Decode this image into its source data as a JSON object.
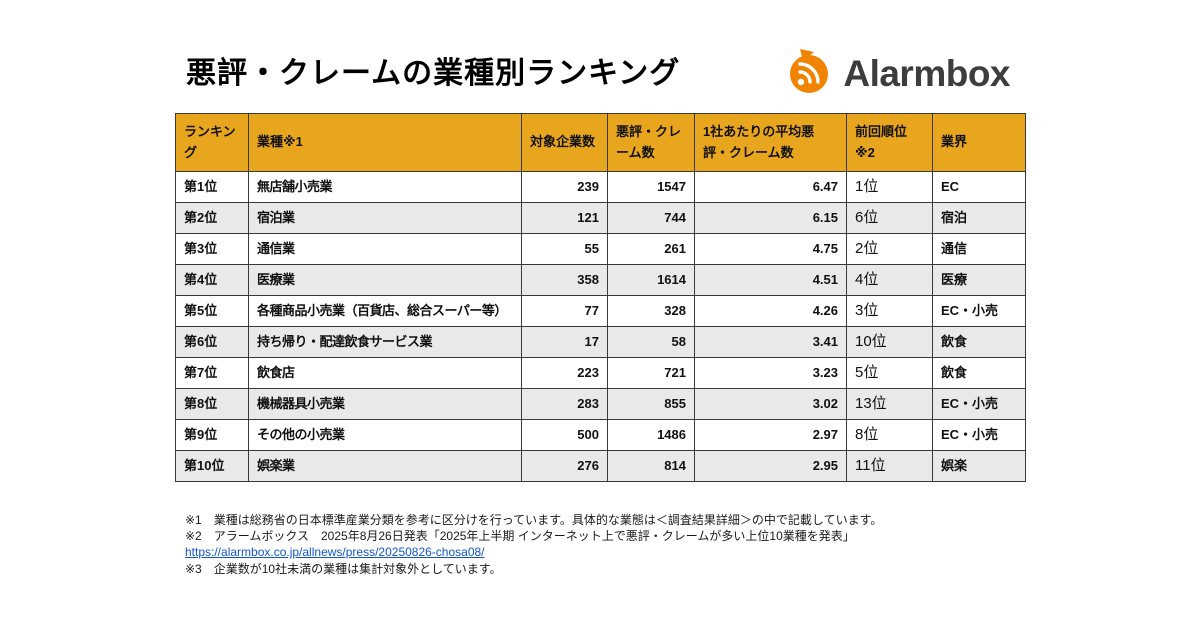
{
  "page": {
    "title": "悪評・クレームの業種別ランキング",
    "brand": "Alarmbox"
  },
  "colors": {
    "header_bg": "#E8A51E",
    "row_alt_bg": "#E9E9E9",
    "border_color": "#3a3a3a",
    "link_color": "#1155CC",
    "logo_orange": "#F08300",
    "brand_text": "#3d3d3d"
  },
  "chart_data": {
    "type": "table",
    "title": "悪評・クレームの業種別ランキング",
    "columns": [
      "ランキング",
      "業種※1",
      "対象企業数",
      "悪評・クレーム数",
      "1社あたりの平均悪評・クレーム数",
      "前回順位※2",
      "業界"
    ],
    "rows": [
      [
        "第1位",
        "無店舗小売業",
        239,
        1547,
        "6.47",
        "1位",
        "EC"
      ],
      [
        "第2位",
        "宿泊業",
        121,
        744,
        "6.15",
        "6位",
        "宿泊"
      ],
      [
        "第3位",
        "通信業",
        55,
        261,
        "4.75",
        "2位",
        "通信"
      ],
      [
        "第4位",
        "医療業",
        358,
        1614,
        "4.51",
        "4位",
        "医療"
      ],
      [
        "第5位",
        "各種商品小売業（百貨店、総合スーパー等）",
        77,
        328,
        "4.26",
        "3位",
        "EC・小売"
      ],
      [
        "第6位",
        "持ち帰り・配達飲食サービス業",
        17,
        58,
        "3.41",
        "10位",
        "飲食"
      ],
      [
        "第7位",
        "飲食店",
        223,
        721,
        "3.23",
        "5位",
        "飲食"
      ],
      [
        "第8位",
        "機械器具小売業",
        283,
        855,
        "3.02",
        "13位",
        "EC・小売"
      ],
      [
        "第9位",
        "その他の小売業",
        500,
        1486,
        "2.97",
        "8位",
        "EC・小売"
      ],
      [
        "第10位",
        "娯楽業",
        276,
        814,
        "2.95",
        "11位",
        "娯楽"
      ]
    ]
  },
  "footnotes": {
    "note1": "※1　業種は総務省の日本標準産業分類を参考に区分けを行っています。具体的な業態は＜調査結果詳細＞の中で記載しています。",
    "note2": "※2　アラームボックス　2025年8月26日発表「2025年上半期 インターネット上で悪評・クレームが多い上位10業種を発表」",
    "note2_link": "https://alarmbox.co.jp/allnews/press/20250826-chosa08/",
    "note3": "※3　企業数が10社未満の業種は集計対象外としています。"
  }
}
